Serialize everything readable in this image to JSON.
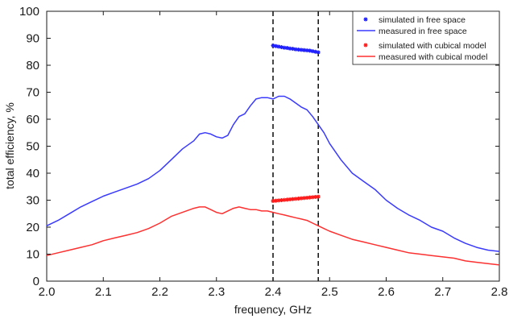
{
  "chart_data": {
    "type": "line",
    "xlabel": "frequency, GHz",
    "ylabel": "total efficiency, %",
    "xlim": [
      2.0,
      2.8
    ],
    "ylim": [
      0,
      100
    ],
    "x_ticks": [
      "2.0",
      "2.1",
      "2.2",
      "2.3",
      "2.4",
      "2.5",
      "2.6",
      "2.7",
      "2.8"
    ],
    "y_ticks": [
      "0",
      "10",
      "20",
      "30",
      "40",
      "50",
      "60",
      "70",
      "80",
      "90",
      "100"
    ],
    "grid": false,
    "legend_position": "top-right",
    "vertical_markers": [
      2.4,
      2.48
    ],
    "series": [
      {
        "name": "simulated in free space",
        "style": "markers",
        "color": "#1f1fff",
        "x": [
          2.4,
          2.405,
          2.41,
          2.415,
          2.42,
          2.425,
          2.43,
          2.435,
          2.44,
          2.445,
          2.45,
          2.455,
          2.46,
          2.465,
          2.47,
          2.475,
          2.48
        ],
        "y": [
          87.3,
          87.1,
          86.9,
          86.7,
          86.5,
          86.4,
          86.2,
          86.1,
          85.9,
          85.8,
          85.7,
          85.6,
          85.5,
          85.4,
          85.2,
          85.0,
          84.8
        ]
      },
      {
        "name": "measured in free space",
        "style": "line",
        "color": "#3a3aff",
        "x": [
          2.0,
          2.02,
          2.04,
          2.06,
          2.08,
          2.1,
          2.12,
          2.14,
          2.16,
          2.18,
          2.2,
          2.22,
          2.24,
          2.26,
          2.27,
          2.28,
          2.29,
          2.3,
          2.31,
          2.32,
          2.33,
          2.34,
          2.35,
          2.36,
          2.37,
          2.38,
          2.39,
          2.4,
          2.41,
          2.42,
          2.43,
          2.44,
          2.45,
          2.46,
          2.47,
          2.48,
          2.49,
          2.5,
          2.52,
          2.54,
          2.56,
          2.58,
          2.6,
          2.62,
          2.64,
          2.66,
          2.68,
          2.7,
          2.72,
          2.74,
          2.76,
          2.78,
          2.8
        ],
        "y": [
          20.5,
          22.5,
          25,
          27.5,
          29.5,
          31.5,
          33,
          34.5,
          36,
          38,
          41,
          45,
          49,
          52,
          54.5,
          55,
          54.5,
          53.5,
          53,
          54,
          58,
          61,
          62,
          65,
          67.5,
          68,
          68,
          67.5,
          68.5,
          68.5,
          67.5,
          66,
          64.5,
          63.5,
          61,
          58,
          55,
          51,
          45,
          40,
          37,
          34,
          30,
          27,
          24.5,
          22.5,
          20,
          18.5,
          16,
          14,
          12.5,
          11.5,
          11
        ]
      },
      {
        "name": "simulated with cubical model",
        "style": "markers",
        "color": "#ff1a1a",
        "x": [
          2.4,
          2.405,
          2.41,
          2.415,
          2.42,
          2.425,
          2.43,
          2.435,
          2.44,
          2.445,
          2.45,
          2.455,
          2.46,
          2.465,
          2.47,
          2.475,
          2.48
        ],
        "y": [
          29.7,
          29.8,
          29.9,
          30.0,
          30.1,
          30.2,
          30.3,
          30.4,
          30.5,
          30.6,
          30.7,
          30.8,
          30.9,
          31.0,
          31.1,
          31.2,
          31.3
        ]
      },
      {
        "name": "measured with cubical model",
        "style": "line",
        "color": "#ff3030",
        "x": [
          2.0,
          2.02,
          2.04,
          2.06,
          2.08,
          2.1,
          2.12,
          2.14,
          2.16,
          2.18,
          2.2,
          2.22,
          2.24,
          2.26,
          2.27,
          2.28,
          2.29,
          2.3,
          2.31,
          2.32,
          2.33,
          2.34,
          2.35,
          2.36,
          2.37,
          2.38,
          2.39,
          2.4,
          2.41,
          2.42,
          2.43,
          2.44,
          2.45,
          2.46,
          2.47,
          2.48,
          2.49,
          2.5,
          2.52,
          2.54,
          2.56,
          2.58,
          2.6,
          2.62,
          2.64,
          2.66,
          2.68,
          2.7,
          2.72,
          2.74,
          2.76,
          2.78,
          2.8
        ],
        "y": [
          9.5,
          10.5,
          11.5,
          12.5,
          13.5,
          15,
          16,
          17,
          18,
          19.5,
          21.5,
          24,
          25.5,
          27,
          27.5,
          27.5,
          26.5,
          25.5,
          25,
          26,
          27,
          27.5,
          27,
          26.5,
          26.5,
          26,
          26,
          25.5,
          25,
          24.5,
          24,
          23.5,
          23,
          22.5,
          21.5,
          20.5,
          19.5,
          18.5,
          17,
          15.5,
          14.5,
          13.5,
          12.5,
          11.5,
          10.5,
          10,
          9.5,
          9,
          8.5,
          7.5,
          7,
          6.5,
          6
        ]
      }
    ]
  }
}
